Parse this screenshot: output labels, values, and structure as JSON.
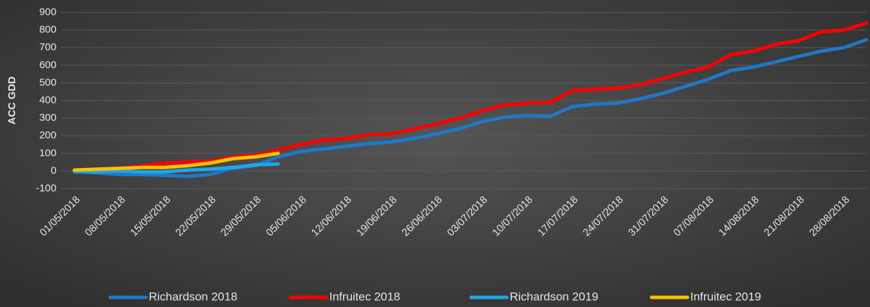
{
  "chart_data": {
    "type": "line",
    "y_label": "ACC GDD",
    "categories": [
      "01/05/2018",
      null,
      "08/05/2018",
      null,
      "15/05/2018",
      null,
      "22/05/2018",
      null,
      "29/05/2018",
      null,
      "05/06/2018",
      null,
      "12/06/2018",
      null,
      "19/06/2018",
      null,
      "26/06/2018",
      null,
      "03/07/2018",
      null,
      "10/07/2018",
      null,
      "17/07/2018",
      null,
      "24/07/2018",
      null,
      "31/07/2018",
      null,
      "07/08/2018",
      null,
      "14/08/2018",
      null,
      "21/08/2018",
      null,
      "28/08/2018",
      null
    ],
    "series": [
      {
        "name": "Richardson  2018",
        "color": "#1f78c8",
        "values": [
          -5,
          -10,
          -20,
          -20,
          -25,
          -30,
          -20,
          15,
          30,
          80,
          110,
          125,
          140,
          155,
          165,
          185,
          210,
          240,
          280,
          305,
          315,
          310,
          365,
          380,
          385,
          410,
          440,
          480,
          520,
          570,
          590,
          620,
          650,
          680,
          700,
          745
        ]
      },
      {
        "name": "Infruitec 2018",
        "color": "#ff0000",
        "values": [
          0,
          10,
          15,
          30,
          45,
          50,
          55,
          80,
          90,
          120,
          150,
          175,
          185,
          205,
          210,
          240,
          265,
          300,
          340,
          375,
          385,
          390,
          455,
          465,
          470,
          490,
          525,
          560,
          590,
          660,
          680,
          720,
          740,
          790,
          800,
          840
        ]
      },
      {
        "name": "Richardson  2019",
        "color": "#1ea8e8",
        "values": [
          0,
          -5,
          0,
          -5,
          -5,
          5,
          10,
          20,
          35,
          40,
          null,
          null,
          null,
          null,
          null,
          null,
          null,
          null,
          null,
          null,
          null,
          null,
          null,
          null,
          null,
          null,
          null,
          null,
          null,
          null,
          null,
          null,
          null,
          null,
          null,
          null
        ]
      },
      {
        "name": "Infruitec 2019",
        "color": "#ffc000",
        "values": [
          5,
          10,
          15,
          20,
          20,
          30,
          45,
          70,
          80,
          100,
          null,
          null,
          null,
          null,
          null,
          null,
          null,
          null,
          null,
          null,
          null,
          null,
          null,
          null,
          null,
          null,
          null,
          null,
          null,
          null,
          null,
          null,
          null,
          null,
          null,
          null
        ]
      }
    ],
    "ylim": [
      -100,
      900
    ],
    "yticks": [
      -100,
      0,
      100,
      200,
      300,
      400,
      500,
      600,
      700,
      800,
      900
    ],
    "grid": true,
    "legend": "bottom"
  }
}
